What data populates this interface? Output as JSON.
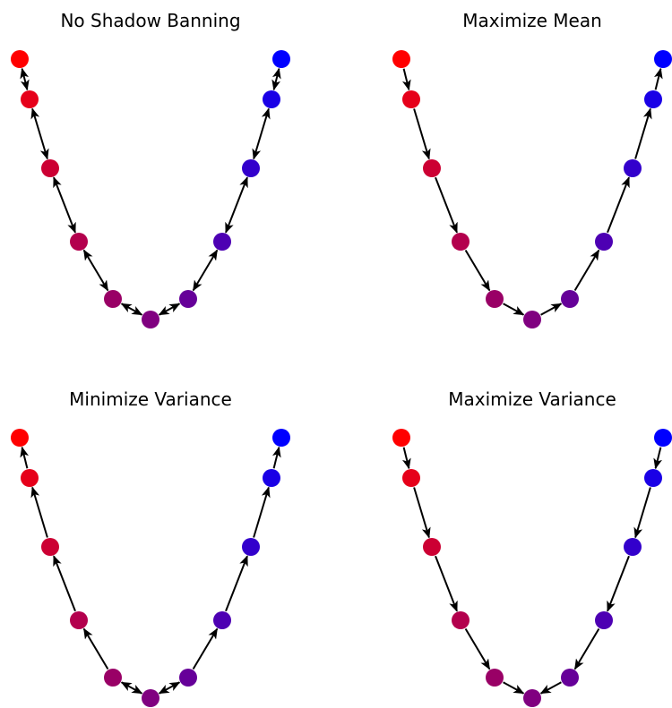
{
  "panels": [
    {
      "title": "No Shadow Banning",
      "edges": [
        [
          0,
          1,
          "both"
        ],
        [
          1,
          2,
          "both"
        ],
        [
          2,
          3,
          "both"
        ],
        [
          3,
          4,
          "both"
        ],
        [
          4,
          5,
          "both"
        ],
        [
          5,
          6,
          "both"
        ],
        [
          6,
          7,
          "both"
        ],
        [
          7,
          8,
          "both"
        ],
        [
          8,
          9,
          "both"
        ],
        [
          9,
          10,
          "both"
        ]
      ]
    },
    {
      "title": "Maximize Mean",
      "edges": [
        [
          0,
          1,
          "fwd"
        ],
        [
          1,
          2,
          "fwd"
        ],
        [
          2,
          3,
          "fwd"
        ],
        [
          3,
          4,
          "fwd"
        ],
        [
          4,
          5,
          "fwd"
        ],
        [
          5,
          6,
          "fwd"
        ],
        [
          6,
          7,
          "fwd"
        ],
        [
          7,
          8,
          "fwd"
        ],
        [
          8,
          9,
          "fwd"
        ],
        [
          9,
          10,
          "fwd"
        ]
      ]
    },
    {
      "title": "Minimize Variance",
      "edges": [
        [
          0,
          1,
          "back"
        ],
        [
          1,
          2,
          "back"
        ],
        [
          2,
          3,
          "back"
        ],
        [
          3,
          4,
          "back"
        ],
        [
          4,
          5,
          "both"
        ],
        [
          5,
          6,
          "both"
        ],
        [
          6,
          7,
          "fwd"
        ],
        [
          7,
          8,
          "fwd"
        ],
        [
          8,
          9,
          "fwd"
        ],
        [
          9,
          10,
          "fwd"
        ]
      ]
    },
    {
      "title": "Maximize Variance",
      "edges": [
        [
          0,
          1,
          "fwd"
        ],
        [
          1,
          2,
          "fwd"
        ],
        [
          2,
          3,
          "fwd"
        ],
        [
          3,
          4,
          "fwd"
        ],
        [
          4,
          5,
          "fwd"
        ],
        [
          5,
          6,
          "back"
        ],
        [
          6,
          7,
          "back"
        ],
        [
          7,
          8,
          "back"
        ],
        [
          8,
          9,
          "back"
        ],
        [
          9,
          10,
          "back"
        ]
      ]
    }
  ],
  "node_colors": [
    "#ff0000",
    "#e6001a",
    "#cc0033",
    "#b3004d",
    "#990066",
    "#800080",
    "#660099",
    "#4d00b3",
    "#3300cc",
    "#1a00e6",
    "#0000ff"
  ],
  "edge_color": "#000000"
}
